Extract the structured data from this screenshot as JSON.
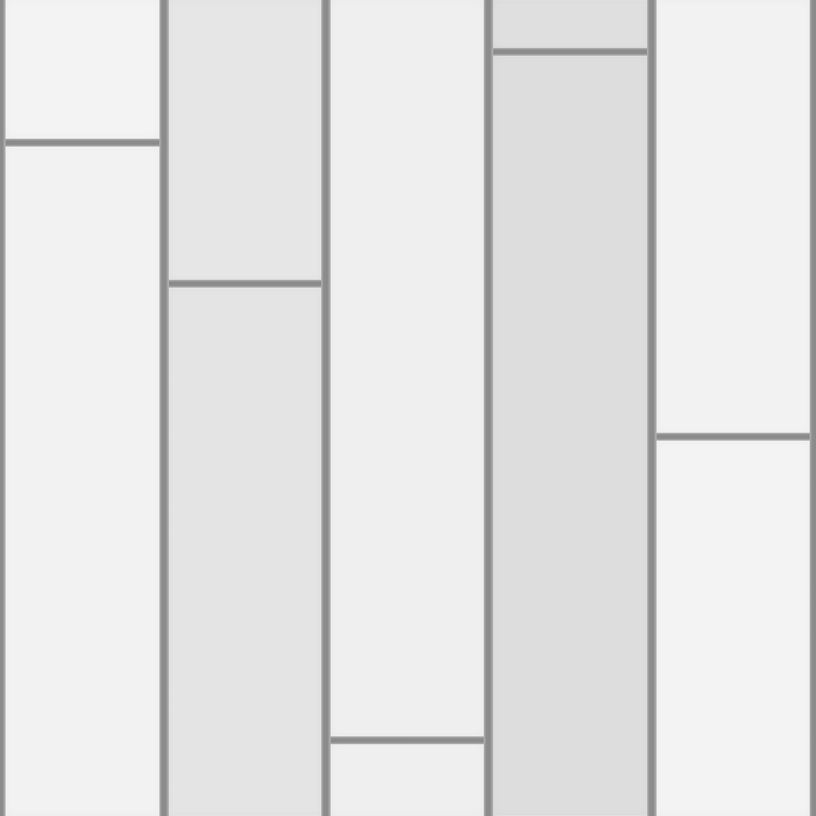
{
  "texture": {
    "description": "",
    "colors": {
      "groove": "#8c8c8c",
      "plank_light": "#f2f2f2",
      "plank_mid": "#e4e4e4",
      "plank_dark": "#dddddd",
      "plank_soft": "#efefef"
    }
  }
}
